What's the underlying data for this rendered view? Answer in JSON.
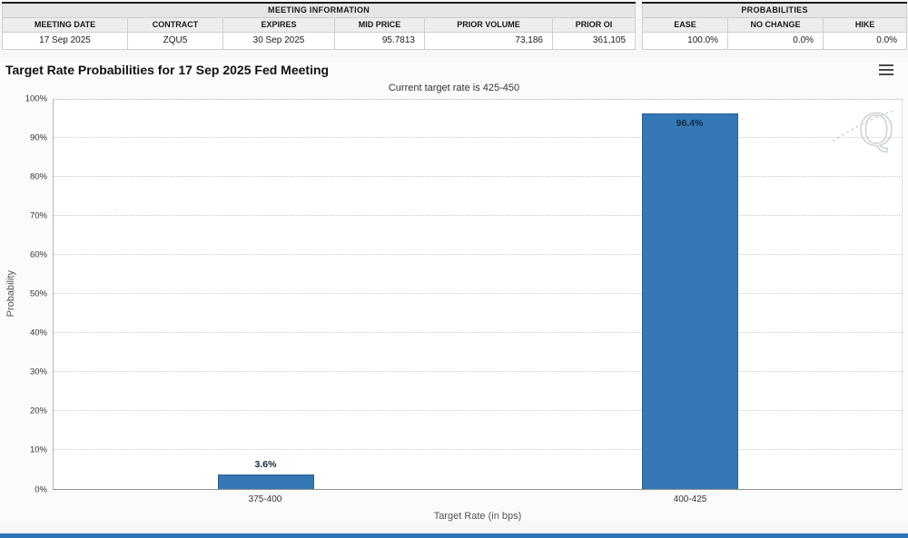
{
  "meeting_information": {
    "title": "MEETING INFORMATION",
    "columns": [
      "MEETING DATE",
      "CONTRACT",
      "EXPIRES",
      "MID PRICE",
      "PRIOR VOLUME",
      "PRIOR OI"
    ],
    "values": [
      "17 Sep 2025",
      "ZQU5",
      "30 Sep 2025",
      "95.7813",
      "73,186",
      "361,105"
    ]
  },
  "probabilities_summary": {
    "title": "PROBABILITIES",
    "columns": [
      "EASE",
      "NO CHANGE",
      "HIKE"
    ],
    "values": [
      "100.0%",
      "0.0%",
      "0.0%"
    ]
  },
  "chart": {
    "title": "Target Rate Probabilities for 17 Sep 2025 Fed Meeting",
    "subtitle": "Current target rate is 425-450",
    "watermark": "Q"
  },
  "chart_data": {
    "type": "bar",
    "categories": [
      "375-400",
      "400-425"
    ],
    "values": [
      3.6,
      96.4
    ],
    "labels": [
      "3.6%",
      "96.4%"
    ],
    "title": "Target Rate Probabilities for 17 Sep 2025 Fed Meeting",
    "xlabel": "Target Rate (in bps)",
    "ylabel": "Probability",
    "ylim": [
      0,
      100
    ],
    "ytick_step": 10,
    "ytick_suffix": "%",
    "grid": "dotted-horizontal",
    "legend": "none",
    "bar_color": "#3478b5",
    "bar_border_color": "#2a5f8f",
    "bar_label_color": "#122b44"
  }
}
